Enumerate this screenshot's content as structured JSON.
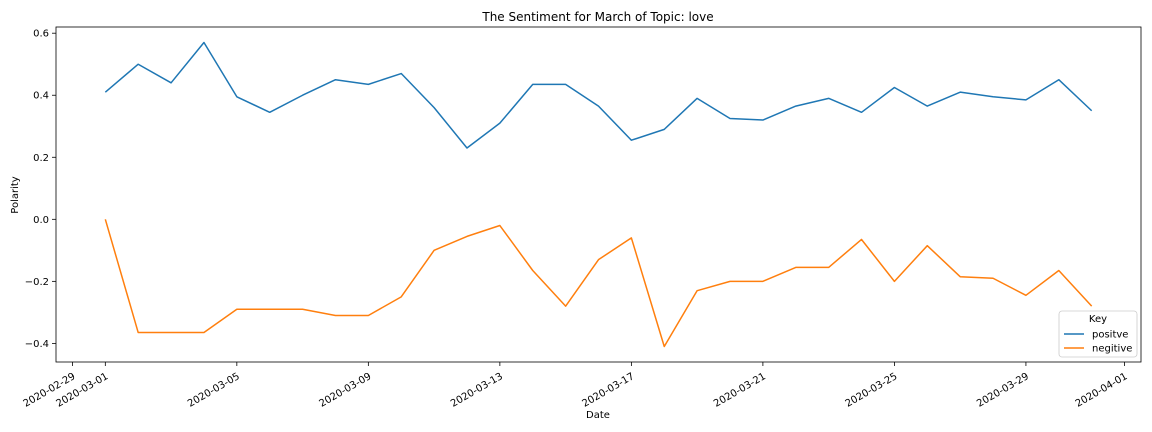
{
  "chart_data": {
    "type": "line",
    "title": "The Sentiment for March of Topic: love",
    "xlabel": "Date",
    "ylabel": "Polarity",
    "x": [
      "2020-03-01",
      "2020-03-02",
      "2020-03-03",
      "2020-03-04",
      "2020-03-05",
      "2020-03-06",
      "2020-03-07",
      "2020-03-08",
      "2020-03-09",
      "2020-03-10",
      "2020-03-11",
      "2020-03-12",
      "2020-03-13",
      "2020-03-14",
      "2020-03-15",
      "2020-03-16",
      "2020-03-17",
      "2020-03-18",
      "2020-03-19",
      "2020-03-20",
      "2020-03-21",
      "2020-03-22",
      "2020-03-23",
      "2020-03-24",
      "2020-03-25",
      "2020-03-26",
      "2020-03-27",
      "2020-03-28",
      "2020-03-29",
      "2020-03-30",
      "2020-03-31"
    ],
    "series": [
      {
        "name": "positve",
        "color": "#1f77b4",
        "values": [
          0.41,
          0.5,
          0.44,
          0.57,
          0.395,
          0.345,
          0.4,
          0.45,
          0.435,
          0.47,
          0.36,
          0.23,
          0.31,
          0.435,
          0.435,
          0.365,
          0.255,
          0.29,
          0.39,
          0.325,
          0.32,
          0.365,
          0.39,
          0.345,
          0.425,
          0.365,
          0.41,
          0.395,
          0.385,
          0.45,
          0.35
        ]
      },
      {
        "name": "negitive",
        "color": "#ff7f0e",
        "values": [
          0.0,
          -0.365,
          -0.365,
          -0.365,
          -0.29,
          -0.29,
          -0.29,
          -0.31,
          -0.31,
          -0.25,
          -0.1,
          -0.055,
          -0.02,
          -0.165,
          -0.28,
          -0.13,
          -0.06,
          -0.41,
          -0.23,
          -0.2,
          -0.2,
          -0.155,
          -0.155,
          -0.065,
          -0.2,
          -0.085,
          -0.185,
          -0.19,
          -0.245,
          -0.165,
          -0.28
        ]
      }
    ],
    "ylim": [
      -0.46,
      0.62
    ],
    "xlim": [
      "2020-02-28.5",
      "2020-04-01.5"
    ],
    "yticks": [
      -0.4,
      -0.2,
      0.0,
      0.2,
      0.4,
      0.6
    ],
    "ytick_labels": [
      "−0.4",
      "−0.2",
      "0.0",
      "0.2",
      "0.4",
      "0.6"
    ],
    "xticks": [
      "2020-02-29",
      "2020-03-01",
      "2020-03-05",
      "2020-03-09",
      "2020-03-13",
      "2020-03-17",
      "2020-03-21",
      "2020-03-25",
      "2020-03-29",
      "2020-04-01"
    ],
    "grid": false,
    "legend": {
      "title": "Key",
      "placement": "lower-right"
    }
  }
}
